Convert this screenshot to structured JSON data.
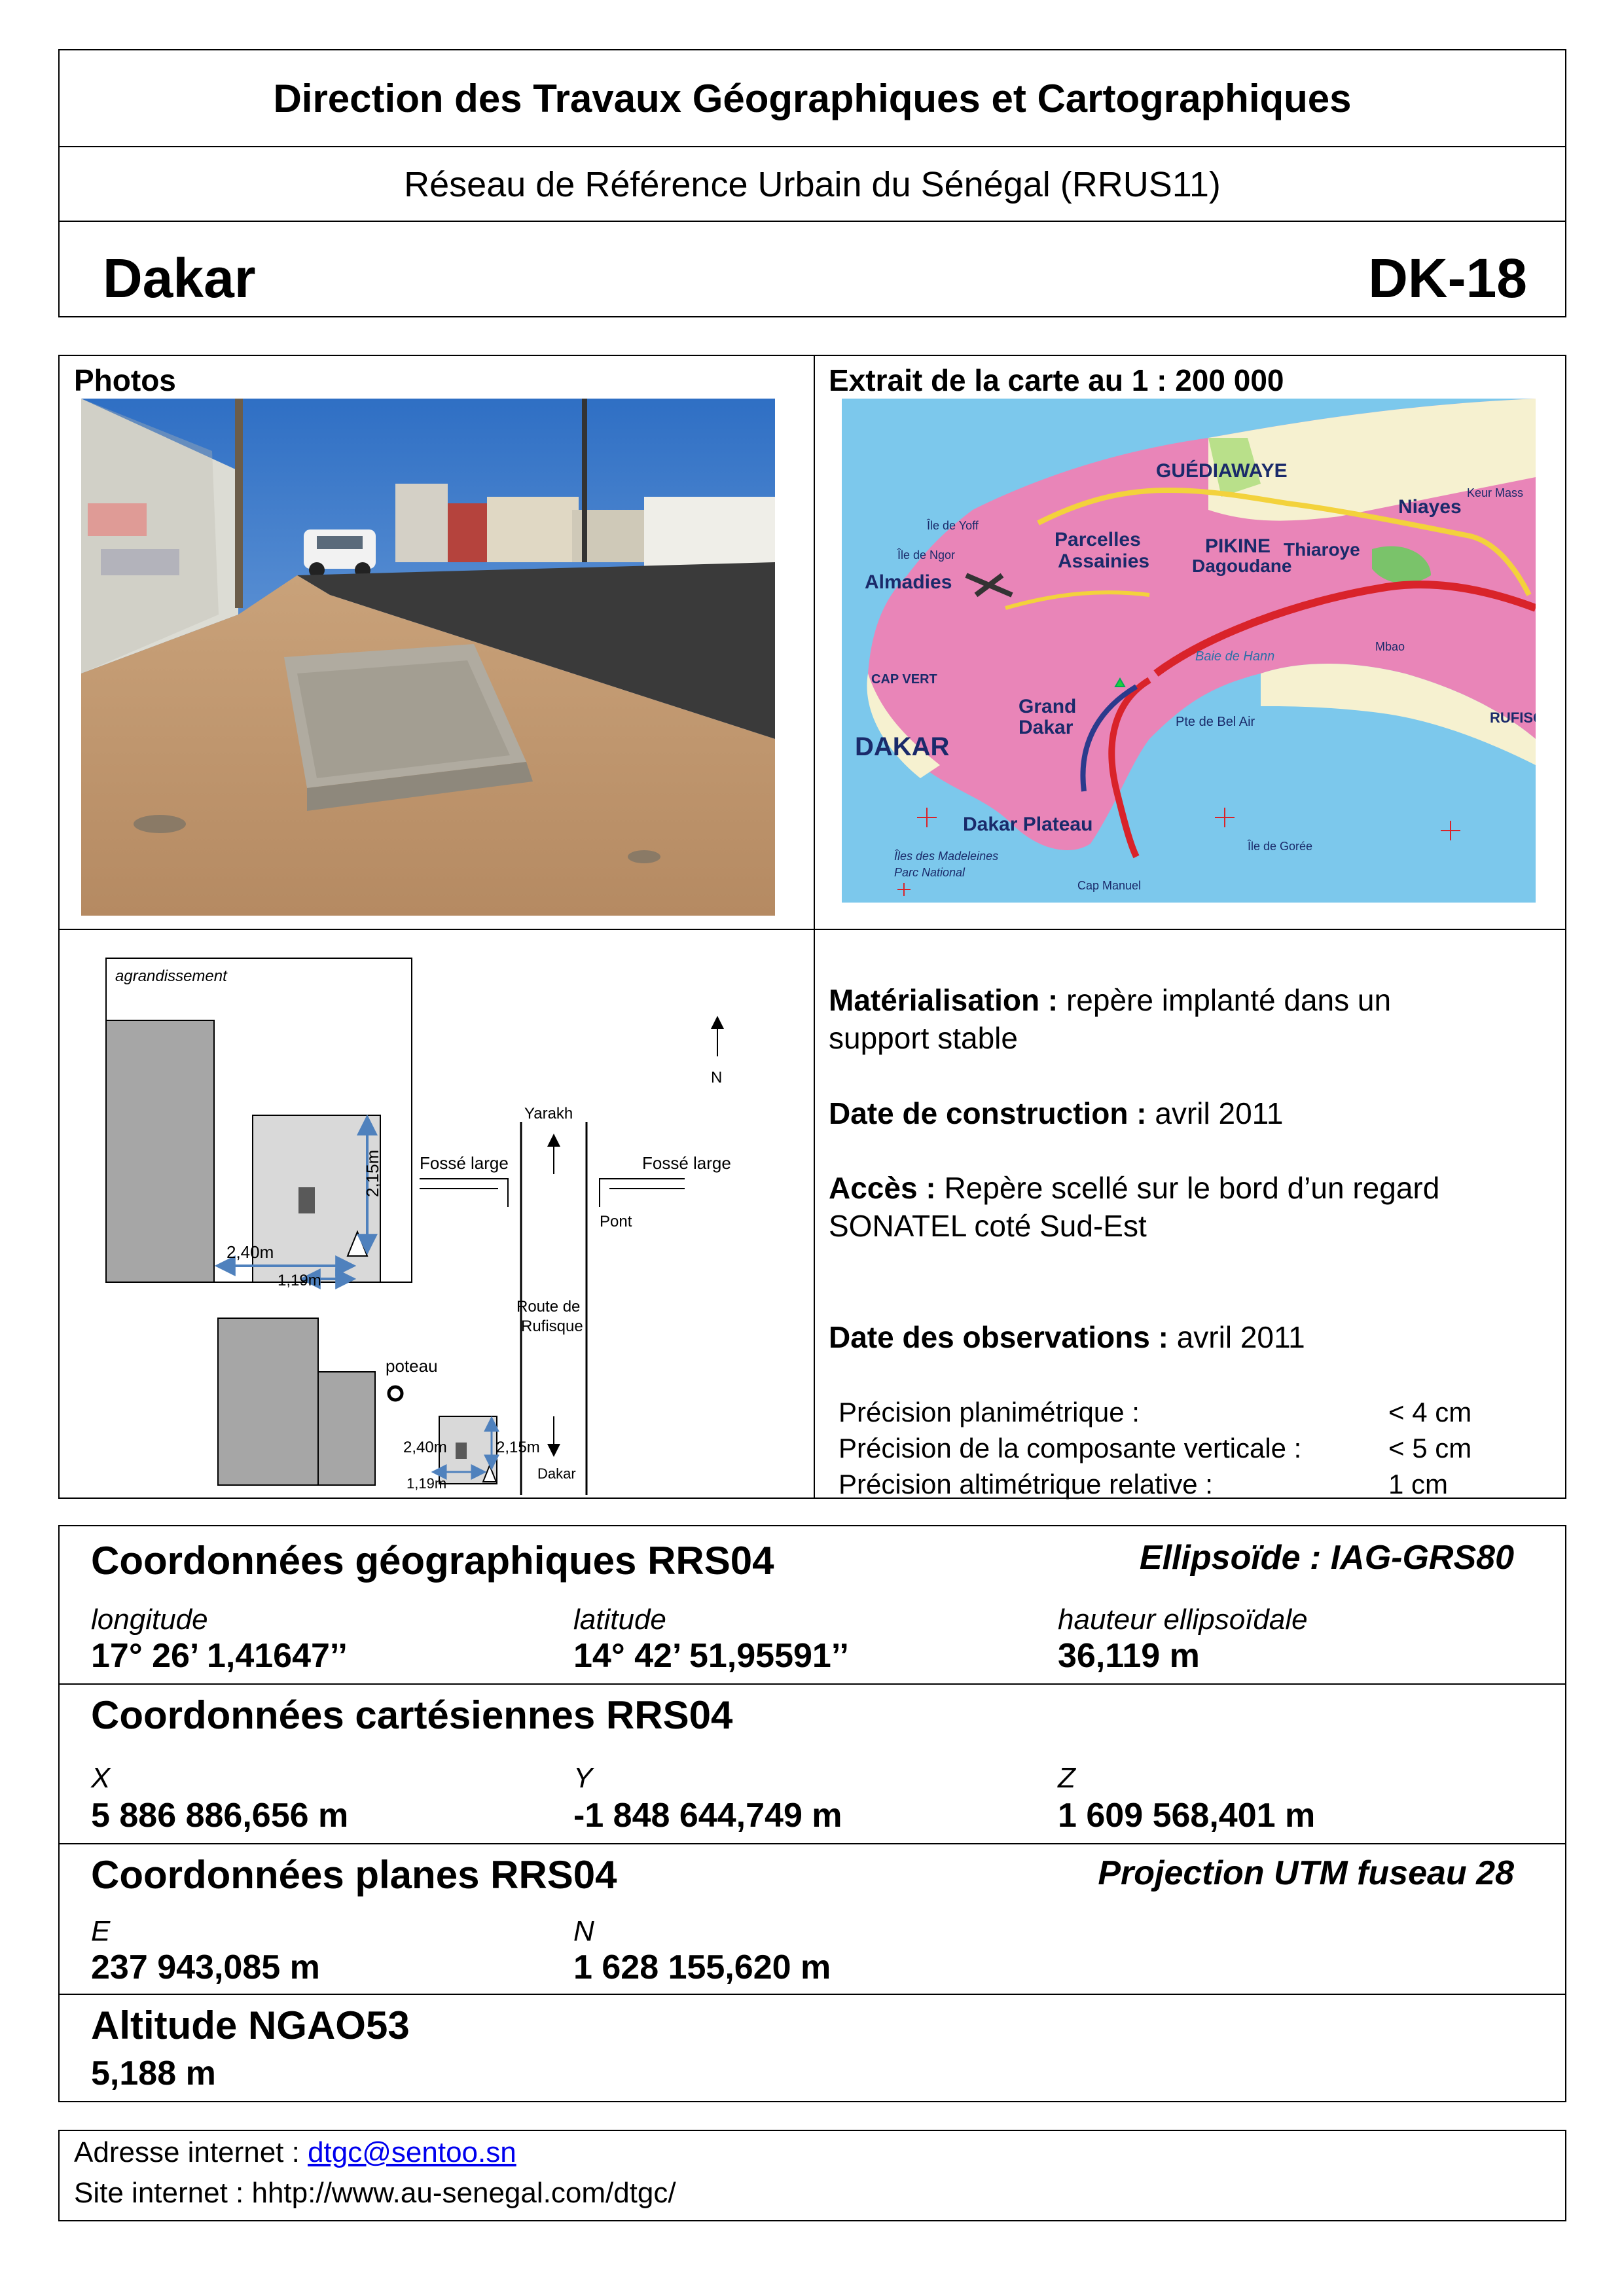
{
  "header": {
    "agency": "Direction des Travaux Géographiques et Cartographiques",
    "network": "Réseau de Référence Urbain du Sénégal (RRUS11)",
    "city": "Dakar",
    "code": "DK-18"
  },
  "photos": {
    "title": "Photos"
  },
  "map": {
    "title": "Extrait de la carte au 1 : 200 000",
    "labels": {
      "guediawaye": "GUÉDIAWAYE",
      "niayes": "Niayes",
      "parcelles": "Parcelles",
      "assainies": "Assainies",
      "pikine": "PIKINE",
      "dagoudane": "Dagoudane",
      "thiaroye": "Thiaroye",
      "almadies": "Almadies",
      "grand": "Grand",
      "dakar_city": "Dakar",
      "dakar_big": "DAKAR",
      "plateau": "Dakar Plateau",
      "cap_vert": "CAP VERT",
      "baie_hann": "Baie de Hann",
      "bel_air": "Pte de Bel Air",
      "ile_yoff": "Île de Yoff",
      "ile_ngor": "Île de Ngor",
      "ile_goree": "Île de Gorée",
      "cap_manuel": "Cap Manuel",
      "madeleines": "Îles des Madeleines",
      "parc": "Parc National",
      "rufisque": "RUFISQ",
      "keur_massar": "Keur Mass",
      "mbao": "Mbao"
    }
  },
  "sketch": {
    "agrandissement": "agrandissement",
    "north": "N",
    "yarakh": "Yarakh",
    "fosse_left": "Fossé large",
    "fosse_right": "Fossé large",
    "pont": "Pont",
    "route_line1": "Route de",
    "route_line2": "Rufisque",
    "dakar": "Dakar",
    "poteau": "poteau",
    "dim_240": "2,40m",
    "dim_119": "1,19m",
    "dim_215": "2,15m",
    "dim_240_small": "2,40m",
    "dim_119_small": "1,19m",
    "dim_215_small": "2,15m"
  },
  "description": {
    "materialisation_label": "Matérialisation :",
    "materialisation_value": "repère implanté dans un",
    "materialisation_value2": "support stable",
    "construction_label": "Date de construction :",
    "construction_value": "avril 2011",
    "acces_label": "Accès :",
    "acces_value": "Repère scellé sur le bord d’un regard",
    "acces_value2": "SONATEL coté Sud-Est",
    "observations_label": "Date des observations :",
    "observations_value": "avril 2011",
    "precision": [
      {
        "label": "Précision planimétrique :",
        "value": "< 4 cm"
      },
      {
        "label": "Précision de la composante verticale :",
        "value": "< 5 cm"
      },
      {
        "label": "Précision altimétrique relative :",
        "value": "1 cm"
      }
    ]
  },
  "geographic": {
    "title": "Coordonnées géographiques RRS04",
    "ellipsoid": "Ellipsoïde : IAG-GRS80",
    "longitude_label": "longitude",
    "latitude_label": "latitude",
    "height_label": "hauteur ellipsoïdale",
    "longitude": "17° 26’ 1,41647’’",
    "latitude": "14° 42’ 51,95591’’",
    "height": "36,119 m"
  },
  "cartesian": {
    "title": "Coordonnées cartésiennes RRS04",
    "x_label": "X",
    "y_label": "Y",
    "z_label": "Z",
    "x": "5 886 886,656 m",
    "y": "-1 848 644,749 m",
    "z": "1 609 568,401 m"
  },
  "planar": {
    "title": "Coordonnées planes RRS04",
    "projection": "Projection UTM fuseau 28",
    "e_label": "E",
    "n_label": "N",
    "e": "237 943,085 m",
    "n": "1 628 155,620 m"
  },
  "altitude": {
    "title": "Altitude NGAO53",
    "value": "5,188 m"
  },
  "footer": {
    "email_label": "Adresse internet : ",
    "email": "dtgc@sentoo.sn",
    "site": "Site internet : hhtp://www.au-senegal.com/dtgc/"
  },
  "colors": {
    "sea": "#79c7ea",
    "land_urban": "#e985b8",
    "road_red": "#d9232a",
    "road_yellow": "#f3d23c",
    "sand": "#c9a27a",
    "sky": "#3a78c8",
    "gray_block": "#a6a6a6",
    "dim_blue": "#4f81bd",
    "link": "#0000ee"
  }
}
